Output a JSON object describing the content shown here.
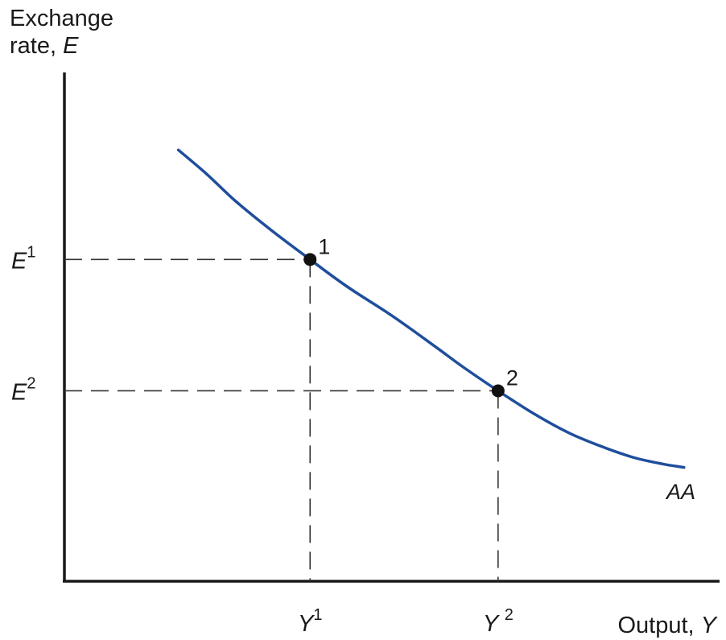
{
  "chart_data": {
    "type": "line",
    "title": "",
    "ylabel_line1": "Exchange",
    "ylabel_line2": "rate, ",
    "ylabel_symbol": "E",
    "xlabel": "Output, ",
    "xlabel_symbol": "Y",
    "series": [
      {
        "name": "AA",
        "color": "#1f4e9c",
        "x": [
          1.6,
          2.0,
          2.4,
          2.9,
          3.45,
          3.97,
          4.6,
          5.2,
          5.6,
          6.09,
          6.6,
          7.1,
          7.6,
          8.0,
          8.4,
          8.7
        ],
        "y": [
          8.9,
          8.4,
          7.85,
          7.25,
          6.64,
          6.08,
          5.48,
          4.85,
          4.42,
          3.93,
          3.45,
          3.05,
          2.75,
          2.55,
          2.42,
          2.35
        ]
      }
    ],
    "points": [
      {
        "label": "1",
        "x": 3.45,
        "y": 6.64
      },
      {
        "label": "2",
        "x": 6.09,
        "y": 3.93
      }
    ],
    "y_ticks": [
      {
        "base": "E",
        "sup": "1",
        "value": 6.64
      },
      {
        "base": "E",
        "sup": "2",
        "value": 3.93
      }
    ],
    "x_ticks": [
      {
        "base": "Y",
        "sup": "1",
        "value": 3.45
      },
      {
        "base": "Y ",
        "sup": "2",
        "value": 6.09
      }
    ],
    "xlim": [
      0,
      9.2
    ],
    "ylim": [
      0,
      10.5
    ],
    "grid": false,
    "dashed_guides": true,
    "curve_label": "AA",
    "colors": {
      "curve": "#1f4e9c",
      "axes": "#1a1a1a",
      "guides": "#333333"
    }
  }
}
